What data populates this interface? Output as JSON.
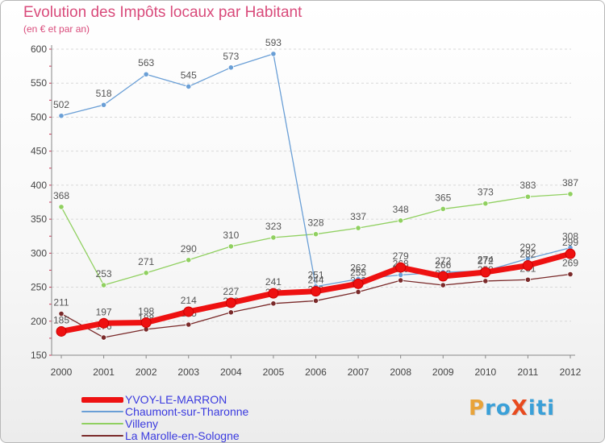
{
  "title": "Evolution des Impôts locaux par Habitant",
  "subtitle": "(en € et par an)",
  "logo": {
    "text": "ProXiti",
    "letters": [
      "P",
      "r",
      "o",
      "X",
      "i",
      "t",
      "i"
    ],
    "colors": [
      "#e8a33a",
      "#3aa0d8",
      "#3aa0d8",
      "#e84a1e",
      "#3aa0d8",
      "#3aa0d8",
      "#3aa0d8"
    ]
  },
  "chart_data": {
    "type": "line",
    "title": "Evolution des Impôts locaux par Habitant",
    "ylabel": "(en € et par an)",
    "xlabel": "",
    "categories": [
      "2000",
      "2001",
      "2002",
      "2003",
      "2004",
      "2005",
      "2006",
      "2007",
      "2008",
      "2009",
      "2010",
      "2011",
      "2012"
    ],
    "ylim": [
      150,
      600
    ],
    "yticks": [
      150,
      200,
      250,
      300,
      350,
      400,
      450,
      500,
      550,
      600
    ],
    "legend_position": "bottom-left",
    "series": [
      {
        "name": "La Marolle-en-Sologne",
        "color": "#7a2a2a",
        "values": [
          211,
          176,
          188,
          195,
          213,
          226,
          230,
          243,
          260,
          253,
          259,
          261,
          269
        ]
      },
      {
        "name": "Villeny",
        "color": "#90d060",
        "values": [
          368,
          253,
          271,
          290,
          310,
          323,
          328,
          337,
          348,
          365,
          373,
          383,
          387
        ]
      },
      {
        "name": "Chaumont-sur-Tharonne",
        "color": "#6a9fd6",
        "values": [
          502,
          518,
          563,
          545,
          573,
          593,
          251,
          262,
          268,
          272,
          274,
          292,
          308
        ]
      },
      {
        "name": "YVOY-LE-MARRON",
        "color": "#ee1111",
        "values": [
          185,
          197,
          198,
          214,
          227,
          241,
          244,
          255,
          279,
          266,
          272,
          282,
          299
        ]
      }
    ],
    "legend_order": [
      "YVOY-LE-MARRON",
      "Chaumont-sur-Tharonne",
      "Villeny",
      "La Marolle-en-Sologne"
    ]
  }
}
